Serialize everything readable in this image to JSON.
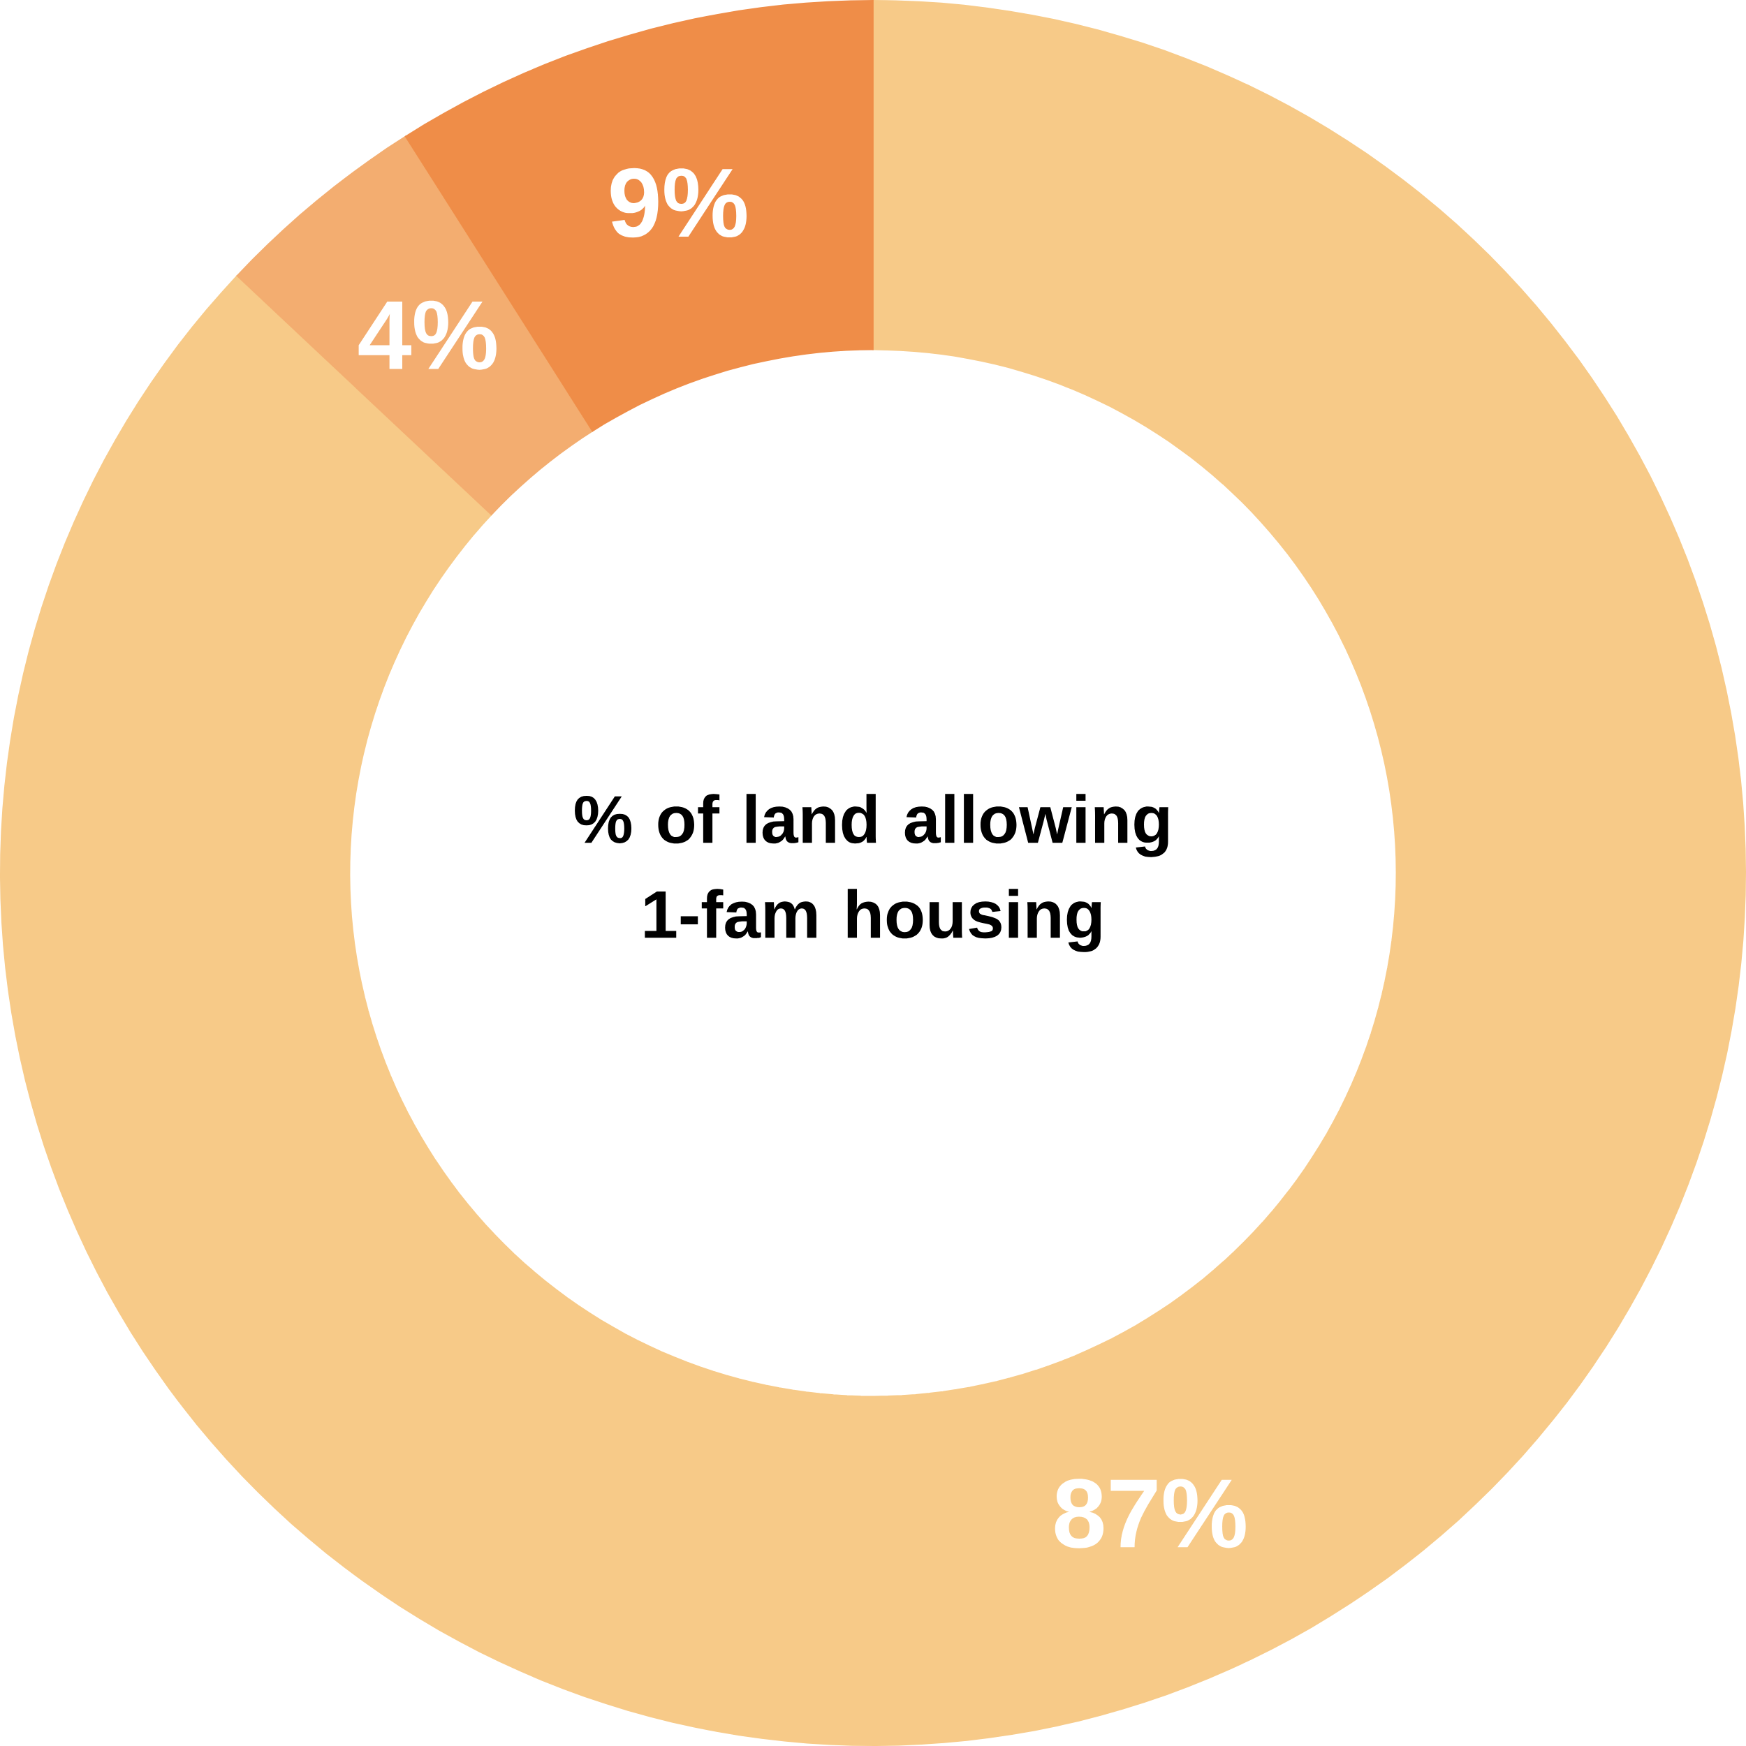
{
  "chart_data": {
    "type": "donut",
    "title": "% of land allowing 1-fam housing",
    "categories": [
      null,
      null,
      null
    ],
    "values": [
      87,
      4,
      9
    ],
    "colors": [
      "#f7ca88",
      "#f3ad70",
      "#ef8d48"
    ],
    "value_labels": [
      "87%",
      "4%",
      "9%"
    ]
  }
}
